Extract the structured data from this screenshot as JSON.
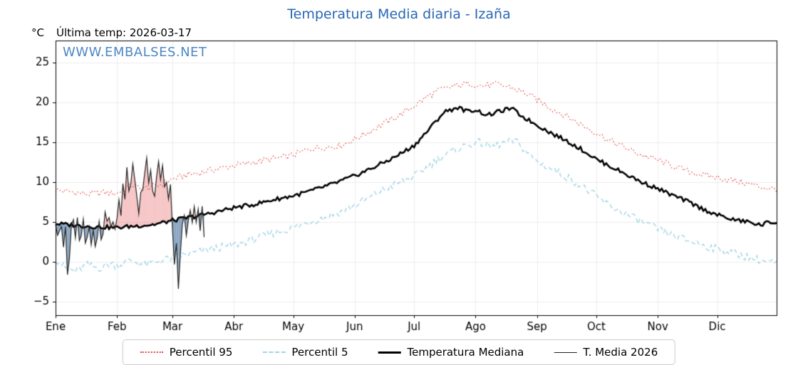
{
  "header": {
    "degrees_label": "°C",
    "last_temp": "Última temp: 2026-03-17",
    "watermark": "WWW.EMBALSES.NET",
    "watermark_color": "#4d87c4"
  },
  "chart_data": {
    "type": "line",
    "title": "Temperatura Media diaria - Izaña",
    "title_color": "#2867b2",
    "ylabel": "°C",
    "ylim": [
      -6.7,
      27.8
    ],
    "yticks": [
      25,
      20,
      15,
      10,
      5,
      0,
      -5
    ],
    "ytick_labels": [
      "25",
      "20",
      "15",
      "10",
      "5",
      "0",
      "−5"
    ],
    "months": [
      "Ene",
      "Feb",
      "Mar",
      "Abr",
      "May",
      "Jun",
      "Jul",
      "Ago",
      "Sep",
      "Oct",
      "Nov",
      "Dic"
    ],
    "month_start_days": [
      0,
      31,
      59,
      90,
      120,
      151,
      181,
      212,
      243,
      273,
      304,
      334
    ],
    "days_in_year": 365,
    "grid_color": "#ececec",
    "axis_color": "#000000",
    "fills": {
      "above_color": "rgba(235,128,128,0.45)",
      "below_color": "rgba(90,128,168,0.70)"
    },
    "series": [
      {
        "name": "Percentil 95",
        "color": "#dc4a41",
        "style": "dotted",
        "noise": 0.4,
        "anchors": [
          [
            0,
            9.0
          ],
          [
            8,
            8.8
          ],
          [
            16,
            8.5
          ],
          [
            24,
            8.7
          ],
          [
            31,
            8.6
          ],
          [
            38,
            9.6
          ],
          [
            45,
            9.2
          ],
          [
            52,
            9.6
          ],
          [
            59,
            10.4
          ],
          [
            66,
            10.9
          ],
          [
            73,
            11.2
          ],
          [
            80,
            11.6
          ],
          [
            90,
            12.1
          ],
          [
            98,
            12.4
          ],
          [
            106,
            12.8
          ],
          [
            114,
            13.1
          ],
          [
            120,
            13.4
          ],
          [
            128,
            14.2
          ],
          [
            136,
            14.4
          ],
          [
            144,
            14.6
          ],
          [
            151,
            15.4
          ],
          [
            158,
            16.3
          ],
          [
            165,
            17.3
          ],
          [
            172,
            18.2
          ],
          [
            181,
            19.6
          ],
          [
            188,
            20.8
          ],
          [
            195,
            21.7
          ],
          [
            202,
            22.1
          ],
          [
            209,
            22.4
          ],
          [
            216,
            22.1
          ],
          [
            223,
            22.3
          ],
          [
            230,
            21.9
          ],
          [
            237,
            21.2
          ],
          [
            243,
            20.4
          ],
          [
            250,
            19.3
          ],
          [
            258,
            18.3
          ],
          [
            265,
            17.3
          ],
          [
            273,
            16.2
          ],
          [
            280,
            15.2
          ],
          [
            288,
            14.3
          ],
          [
            296,
            13.4
          ],
          [
            304,
            12.8
          ],
          [
            312,
            12.0
          ],
          [
            319,
            11.4
          ],
          [
            327,
            10.9
          ],
          [
            334,
            10.6
          ],
          [
            342,
            10.2
          ],
          [
            350,
            9.8
          ],
          [
            356,
            9.4
          ],
          [
            364,
            9.1
          ]
        ]
      },
      {
        "name": "Percentil 5",
        "color": "#a3d3e6",
        "style": "dashed",
        "noise": 0.5,
        "anchors": [
          [
            0,
            0.4
          ],
          [
            5,
            -0.8
          ],
          [
            10,
            -1.2
          ],
          [
            16,
            -0.4
          ],
          [
            22,
            -0.8
          ],
          [
            28,
            -0.2
          ],
          [
            31,
            -0.5
          ],
          [
            38,
            0.2
          ],
          [
            45,
            -0.4
          ],
          [
            52,
            0.1
          ],
          [
            59,
            0.5
          ],
          [
            66,
            0.9
          ],
          [
            73,
            1.3
          ],
          [
            80,
            1.7
          ],
          [
            90,
            2.1
          ],
          [
            98,
            2.7
          ],
          [
            106,
            3.3
          ],
          [
            114,
            3.9
          ],
          [
            120,
            4.3
          ],
          [
            128,
            5.0
          ],
          [
            136,
            5.6
          ],
          [
            144,
            6.3
          ],
          [
            151,
            7.1
          ],
          [
            158,
            8.0
          ],
          [
            165,
            9.0
          ],
          [
            172,
            9.8
          ],
          [
            181,
            10.7
          ],
          [
            188,
            12.0
          ],
          [
            195,
            13.2
          ],
          [
            202,
            14.1
          ],
          [
            209,
            14.8
          ],
          [
            214,
            15.0
          ],
          [
            220,
            14.4
          ],
          [
            226,
            14.9
          ],
          [
            232,
            15.2
          ],
          [
            238,
            13.8
          ],
          [
            243,
            12.6
          ],
          [
            250,
            11.7
          ],
          [
            258,
            10.7
          ],
          [
            265,
            9.6
          ],
          [
            273,
            8.2
          ],
          [
            280,
            7.0
          ],
          [
            288,
            6.0
          ],
          [
            296,
            5.0
          ],
          [
            304,
            4.1
          ],
          [
            312,
            3.3
          ],
          [
            319,
            2.7
          ],
          [
            327,
            2.1
          ],
          [
            334,
            1.6
          ],
          [
            342,
            1.1
          ],
          [
            350,
            0.6
          ],
          [
            356,
            0.2
          ],
          [
            364,
            -0.2
          ]
        ]
      },
      {
        "name": "Temperatura Mediana",
        "color": "#000000",
        "style": "solid-thick",
        "noise": 0.25,
        "anchors": [
          [
            0,
            4.8
          ],
          [
            10,
            4.6
          ],
          [
            20,
            4.4
          ],
          [
            31,
            4.3
          ],
          [
            40,
            4.5
          ],
          [
            50,
            4.7
          ],
          [
            59,
            5.2
          ],
          [
            70,
            5.7
          ],
          [
            80,
            6.2
          ],
          [
            90,
            6.8
          ],
          [
            100,
            7.2
          ],
          [
            110,
            7.8
          ],
          [
            120,
            8.3
          ],
          [
            130,
            9.0
          ],
          [
            140,
            9.8
          ],
          [
            151,
            10.8
          ],
          [
            160,
            11.8
          ],
          [
            170,
            13.0
          ],
          [
            181,
            14.6
          ],
          [
            188,
            16.5
          ],
          [
            196,
            18.8
          ],
          [
            203,
            19.4
          ],
          [
            208,
            18.9
          ],
          [
            212,
            19.1
          ],
          [
            218,
            18.4
          ],
          [
            224,
            18.9
          ],
          [
            230,
            19.3
          ],
          [
            236,
            18.2
          ],
          [
            243,
            17.2
          ],
          [
            250,
            16.2
          ],
          [
            258,
            15.2
          ],
          [
            265,
            14.2
          ],
          [
            273,
            12.9
          ],
          [
            280,
            12.0
          ],
          [
            288,
            11.0
          ],
          [
            296,
            10.0
          ],
          [
            304,
            9.2
          ],
          [
            312,
            8.3
          ],
          [
            319,
            7.6
          ],
          [
            327,
            6.6
          ],
          [
            334,
            5.9
          ],
          [
            342,
            5.3
          ],
          [
            350,
            5.0
          ],
          [
            356,
            4.6
          ],
          [
            360,
            5.0
          ],
          [
            364,
            4.9
          ]
        ]
      },
      {
        "name": "T. Media 2026",
        "color": "#222222",
        "style": "solid-thin",
        "noise": 0.2,
        "anchors": [
          [
            0,
            4.8
          ],
          [
            1,
            3.2
          ],
          [
            3,
            4.6
          ],
          [
            4,
            2.0
          ],
          [
            5,
            4.5
          ],
          [
            6,
            -1.8
          ],
          [
            7,
            0.5
          ],
          [
            8,
            4.8
          ],
          [
            9,
            5.3
          ],
          [
            10,
            3.0
          ],
          [
            11,
            5.5
          ],
          [
            12,
            2.6
          ],
          [
            13,
            3.5
          ],
          [
            14,
            5.4
          ],
          [
            15,
            2.4
          ],
          [
            16,
            3.2
          ],
          [
            17,
            4.4
          ],
          [
            18,
            2.2
          ],
          [
            19,
            3.8
          ],
          [
            20,
            1.8
          ],
          [
            21,
            3.0
          ],
          [
            22,
            4.9
          ],
          [
            23,
            2.8
          ],
          [
            24,
            3.4
          ],
          [
            25,
            6.3
          ],
          [
            26,
            4.9
          ],
          [
            27,
            5.6
          ],
          [
            28,
            4.4
          ],
          [
            29,
            5.0
          ],
          [
            30,
            4.2
          ],
          [
            31,
            5.5
          ],
          [
            32,
            7.6
          ],
          [
            33,
            6.0
          ],
          [
            34,
            9.7
          ],
          [
            35,
            7.8
          ],
          [
            36,
            11.8
          ],
          [
            37,
            9.0
          ],
          [
            38,
            9.8
          ],
          [
            39,
            12.4
          ],
          [
            40,
            10.2
          ],
          [
            41,
            8.3
          ],
          [
            42,
            6.0
          ],
          [
            43,
            8.8
          ],
          [
            44,
            9.2
          ],
          [
            45,
            11.0
          ],
          [
            46,
            13.0
          ],
          [
            47,
            9.8
          ],
          [
            48,
            11.6
          ],
          [
            49,
            9.0
          ],
          [
            50,
            8.4
          ],
          [
            51,
            10.6
          ],
          [
            52,
            12.8
          ],
          [
            53,
            10.4
          ],
          [
            54,
            12.2
          ],
          [
            55,
            9.4
          ],
          [
            56,
            10.2
          ],
          [
            57,
            7.8
          ],
          [
            58,
            9.6
          ],
          [
            59,
            4.0
          ],
          [
            60,
            -0.3
          ],
          [
            61,
            2.2
          ],
          [
            62,
            -3.2
          ],
          [
            63,
            1.0
          ],
          [
            64,
            4.6
          ],
          [
            65,
            5.8
          ],
          [
            66,
            3.4
          ],
          [
            67,
            5.0
          ],
          [
            68,
            6.6
          ],
          [
            69,
            4.8
          ],
          [
            70,
            6.9
          ],
          [
            71,
            5.1
          ],
          [
            72,
            6.6
          ],
          [
            73,
            3.8
          ],
          [
            74,
            6.9
          ],
          [
            75,
            3.2
          ]
        ]
      }
    ]
  }
}
